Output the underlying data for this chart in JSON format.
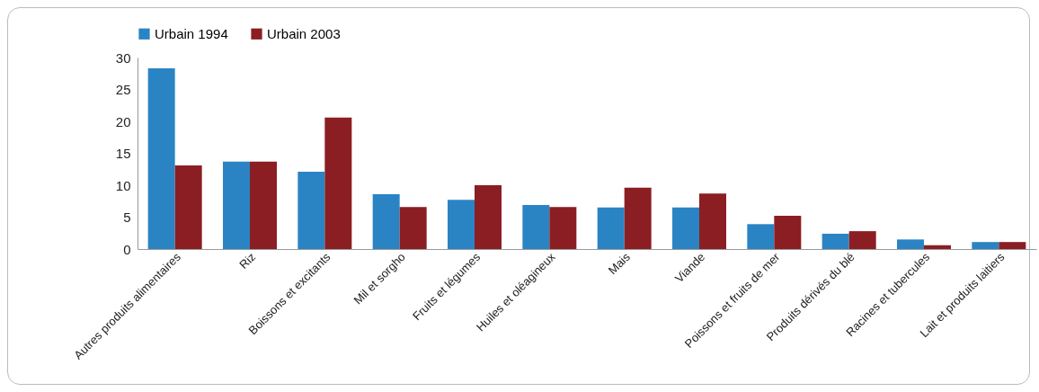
{
  "chart_data": {
    "type": "bar",
    "categories": [
      "Autres produits alimentaires",
      "Riz",
      "Boissons et excitants",
      "Mil et sorgho",
      "Fruits et légumes",
      "Huiles et oléagineux",
      "Mais",
      "Viande",
      "Poissons et fruits de mer",
      "Produits dérivés du blé",
      "Racines et tubercules",
      "Lait et produits laitiers"
    ],
    "series": [
      {
        "name": "Urbain 1994",
        "color": "#2a84c4",
        "values": [
          28.3,
          13.7,
          12.1,
          8.6,
          7.7,
          6.9,
          6.5,
          6.5,
          3.9,
          2.4,
          1.5,
          1.1
        ]
      },
      {
        "name": "Urbain 2003",
        "color": "#8b1e22",
        "values": [
          13.1,
          13.7,
          20.6,
          6.6,
          10.0,
          6.6,
          9.6,
          8.7,
          5.2,
          2.8,
          0.6,
          1.1
        ]
      }
    ],
    "ylim": [
      0,
      30
    ],
    "yticks": [
      0,
      5,
      10,
      15,
      20,
      25,
      30
    ],
    "grid": false,
    "legend": "top"
  }
}
